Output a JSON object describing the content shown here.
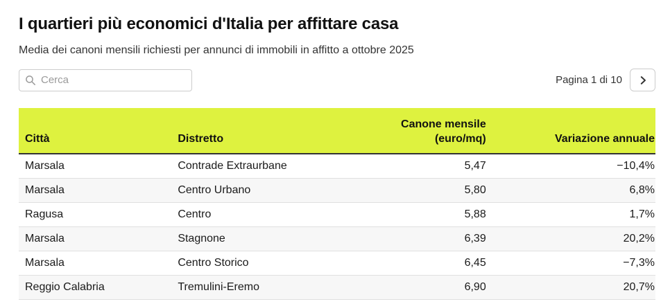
{
  "chart_data": {
    "type": "table",
    "title": "I quartieri più economici d'Italia per affittare casa",
    "subtitle": "Media dei canoni mensili richiesti per annunci di immobili in affitto a ottobre 2025",
    "columns": [
      {
        "label": "Città",
        "align": "left"
      },
      {
        "label": "Distretto",
        "align": "left"
      },
      {
        "label": "Canone mensile\n(euro/mq)",
        "align": "right"
      },
      {
        "label": "Variazione annuale",
        "align": "right"
      }
    ],
    "rows": [
      [
        "Marsala",
        "Contrade Extraurbane",
        "5,47",
        "−10,4%"
      ],
      [
        "Marsala",
        "Centro Urbano",
        "5,80",
        "6,8%"
      ],
      [
        "Ragusa",
        "Centro",
        "5,88",
        "1,7%"
      ],
      [
        "Marsala",
        "Stagnone",
        "6,39",
        "20,2%"
      ],
      [
        "Marsala",
        "Centro Storico",
        "6,45",
        "−7,3%"
      ],
      [
        "Reggio Calabria",
        "Tremulini-Eremo",
        "6,90",
        "20,7%"
      ]
    ]
  },
  "search": {
    "placeholder": "Cerca",
    "icon": "search-icon"
  },
  "pagination": {
    "label": "Pagina 1 di 10",
    "next_icon": "chevron-right-icon"
  },
  "colors": {
    "header_background": "#def23f",
    "header_border": "#333333",
    "row_stripe": "#f7f7f7",
    "row_border": "#e0e0e0",
    "text": "#1a1a1a"
  }
}
